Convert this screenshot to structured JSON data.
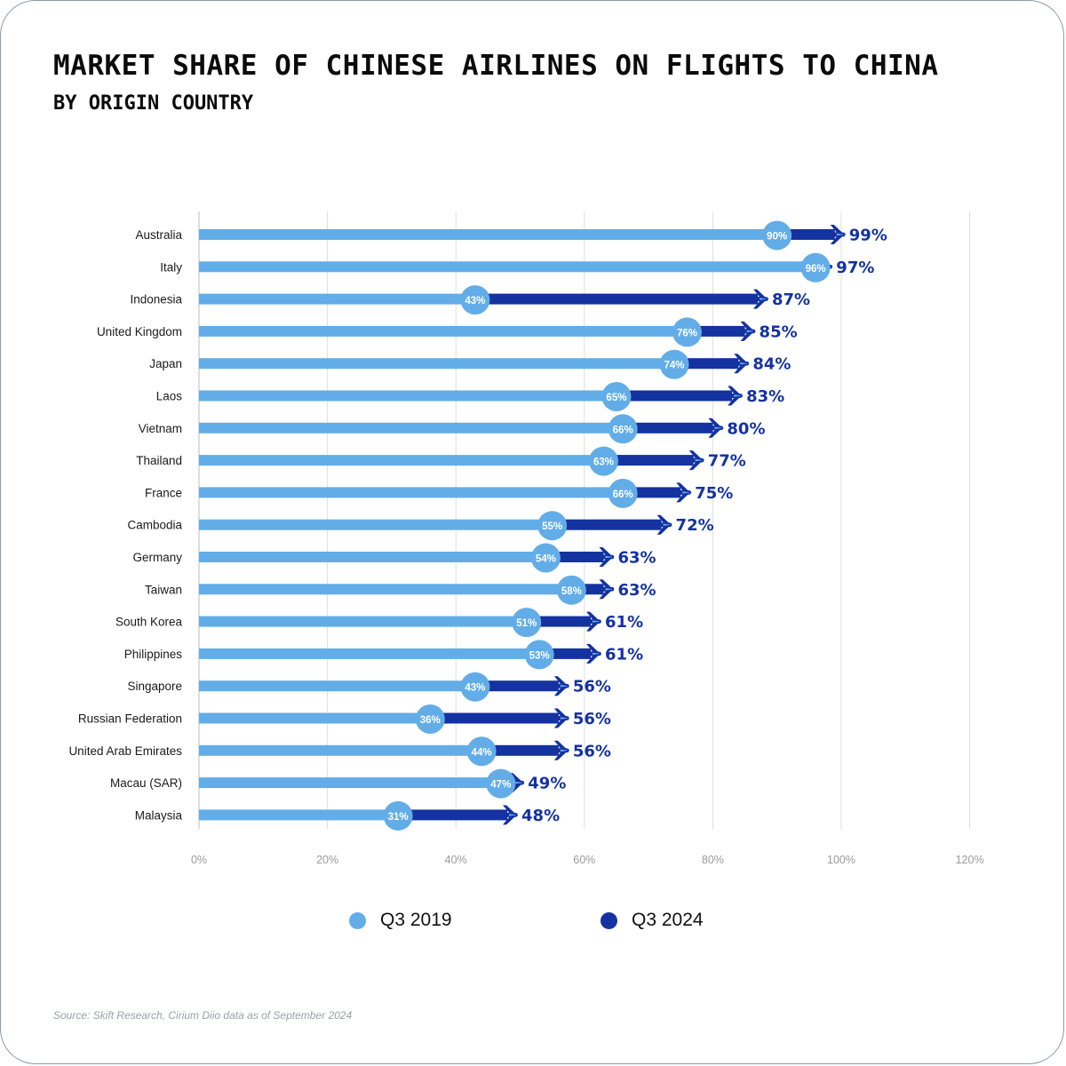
{
  "colors": {
    "q3_2019": "#62ade8",
    "q3_2024": "#1432a0",
    "grid": "#dedede",
    "axis": "#9a9a9a"
  },
  "source": "Source: Skift Research, Cirium Diio data as of September 2024",
  "chart_data": {
    "type": "bar",
    "title": "MARKET SHARE OF CHINESE AIRLINES ON FLIGHTS TO CHINA",
    "subtitle": "BY ORIGIN COUNTRY",
    "xlabel": "",
    "ylabel": "",
    "xlim": [
      0,
      120
    ],
    "x_ticks": [
      "0%",
      "20%",
      "40%",
      "60%",
      "80%",
      "100%",
      "120%"
    ],
    "grid": true,
    "legend_position": "bottom",
    "categories": [
      "Australia",
      "Italy",
      "Indonesia",
      "United Kingdom",
      "Japan",
      "Laos",
      "Vietnam",
      "Thailand",
      "France",
      "Cambodia",
      "Germany",
      "Taiwan",
      "South Korea",
      "Philippines",
      "Singapore",
      "Russian Federation",
      "United Arab Emirates",
      "Macau (SAR)",
      "Malaysia"
    ],
    "series": [
      {
        "name": "Q3 2019",
        "values": [
          90,
          96,
          43,
          76,
          74,
          65,
          66,
          63,
          66,
          55,
          54,
          58,
          51,
          53,
          43,
          36,
          44,
          47,
          31
        ]
      },
      {
        "name": "Q3 2024",
        "values": [
          99,
          97,
          87,
          85,
          84,
          83,
          80,
          77,
          75,
          72,
          63,
          63,
          61,
          61,
          56,
          56,
          56,
          49,
          48
        ]
      }
    ]
  }
}
